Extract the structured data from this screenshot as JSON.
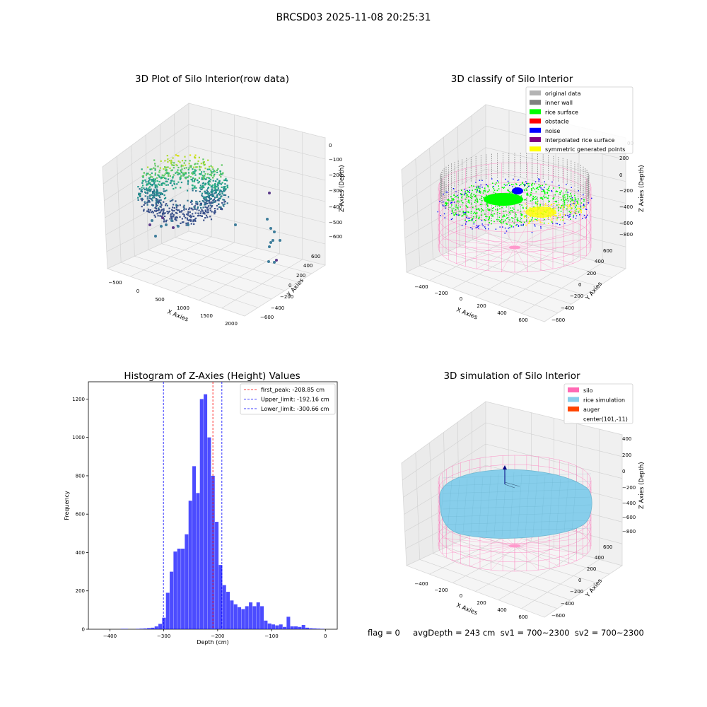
{
  "figure": {
    "suptitle": "BRCSD03 2025-11-08 20:25:31",
    "status_line": "flag = 0     avgDepth = 243 cm  sv1 = 700~2300  sv2 = 700~2300"
  },
  "colors": {
    "original_data": "#b3b3b3",
    "inner_wall": "#808080",
    "rice_surface": "#00ff00",
    "obstacle": "#ff0000",
    "noise": "#0000ff",
    "interpolated_rice_surface": "#800080",
    "symmetric_generated_points": "#ffff00",
    "silo": "#ff69b4",
    "rice_simulation": "#87ceeb",
    "auger": "#ff4500",
    "hist_bar": "#0000ff",
    "first_peak_line": "#ff0000",
    "limit_line": "#0000ff"
  },
  "panels": {
    "raw": {
      "title": "3D Plot of Silo Interior(row data)",
      "xlabel": "X Axies",
      "ylabel": "Y Axies",
      "zlabel": "Z Axies (Depth)",
      "xticks": [
        "−500",
        "0",
        "500",
        "1000",
        "1500",
        "2000"
      ],
      "yticks": [
        "−600",
        "−400",
        "−200",
        "0",
        "200",
        "400",
        "600"
      ],
      "zticks": [
        "0",
        "−100",
        "−200",
        "−300",
        "−400",
        "−500",
        "−600"
      ]
    },
    "classify": {
      "title": "3D classify of Silo Interior",
      "xlabel": "X Axies",
      "ylabel": "Y Axies",
      "zlabel": "Z Axies (Depth)",
      "xticks": [
        "−400",
        "−200",
        "0",
        "200",
        "400",
        "600"
      ],
      "yticks": [
        "−600",
        "−400",
        "−200",
        "0",
        "200",
        "400",
        "600"
      ],
      "zticks": [
        "200",
        "0",
        "−200",
        "−400",
        "−600",
        "−800"
      ],
      "zticks_partial": "00",
      "legend": [
        {
          "label": "original data",
          "color": "#b3b3b3"
        },
        {
          "label": "inner wall",
          "color": "#808080"
        },
        {
          "label": "rice surface",
          "color": "#00ff00"
        },
        {
          "label": "obstacle",
          "color": "#ff0000"
        },
        {
          "label": "noise",
          "color": "#0000ff"
        },
        {
          "label": "interpolated rice surface",
          "color": "#800080"
        },
        {
          "label": "symmetric generated points",
          "color": "#ffff00"
        }
      ]
    },
    "simulation": {
      "title": "3D simulation of Silo Interior",
      "xlabel": "X Axies",
      "ylabel": "Y Axies",
      "zlabel": "Z Axies (Depth)",
      "xticks": [
        "−400",
        "−200",
        "0",
        "200",
        "400",
        "600"
      ],
      "yticks": [
        "−600",
        "−400",
        "−200",
        "0",
        "200",
        "400",
        "600"
      ],
      "zticks": [
        "400",
        "200",
        "0",
        "−200",
        "−400",
        "−600",
        "−800"
      ],
      "legend": [
        {
          "label": "silo",
          "color": "#ff69b4"
        },
        {
          "label": "rice simulation",
          "color": "#87ceeb"
        },
        {
          "label": "auger",
          "color": "#ff4500"
        },
        {
          "label": "center(101,-11)",
          "color": ""
        }
      ]
    }
  },
  "chart_data": [
    {
      "type": "scatter",
      "subtype": "3d",
      "title": "3D Plot of Silo Interior(row data)",
      "xlabel": "X Axies",
      "ylabel": "Y Axies",
      "zlabel": "Z Axies (Depth)",
      "xlim": [
        -600,
        2100
      ],
      "ylim": [
        -650,
        650
      ],
      "zlim": [
        -650,
        20
      ],
      "colormap": "viridis",
      "grid": true
    },
    {
      "type": "scatter",
      "subtype": "3d",
      "title": "3D classify of Silo Interior",
      "xlabel": "X Axies",
      "ylabel": "Y Axies",
      "zlabel": "Z Axies (Depth)",
      "xlim": [
        -500,
        700
      ],
      "ylim": [
        -650,
        650
      ],
      "zlim": [
        -900,
        300
      ],
      "series": [
        {
          "name": "original data"
        },
        {
          "name": "inner wall"
        },
        {
          "name": "rice surface"
        },
        {
          "name": "obstacle"
        },
        {
          "name": "noise"
        },
        {
          "name": "interpolated rice surface"
        },
        {
          "name": "symmetric generated points"
        }
      ],
      "legend_position": "top-right",
      "grid": true
    },
    {
      "type": "bar",
      "subtype": "histogram",
      "title": "Histogram of Z-Axies (Height) Values",
      "xlabel": "Depth (cm)",
      "ylabel": "Frequency",
      "xlim": [
        -440,
        22
      ],
      "ylim": [
        0,
        1290
      ],
      "xticks": [
        -400,
        -300,
        -200,
        -100,
        0
      ],
      "yticks": [
        0,
        200,
        400,
        600,
        800,
        1000,
        1200
      ],
      "bin_width": 7,
      "x": [
        -380,
        -373,
        -352,
        -345,
        -338,
        -331,
        -324,
        -317,
        -310,
        -303,
        -296,
        -289,
        -282,
        -275,
        -268,
        -261,
        -254,
        -247,
        -240,
        -233,
        -226,
        -219,
        -212,
        -205,
        -198,
        -191,
        -184,
        -177,
        -170,
        -163,
        -156,
        -149,
        -142,
        -135,
        -128,
        -121,
        -114,
        -107,
        -100,
        -93,
        -86,
        -79,
        -72,
        -65,
        -58,
        -51,
        -44,
        -37,
        -30,
        -23,
        -16,
        -9
      ],
      "values": [
        2,
        2,
        2,
        3,
        4,
        6,
        8,
        15,
        28,
        60,
        190,
        300,
        405,
        420,
        420,
        495,
        670,
        850,
        710,
        1200,
        1225,
        1000,
        800,
        560,
        335,
        230,
        195,
        150,
        130,
        115,
        105,
        120,
        140,
        120,
        140,
        120,
        45,
        30,
        25,
        20,
        25,
        12,
        65,
        15,
        15,
        12,
        22,
        8,
        5,
        4,
        3,
        2
      ],
      "vlines": [
        {
          "label": "first_peak: -208.85 cm",
          "x": -208.85,
          "color": "#ff0000"
        },
        {
          "label": "Upper_limit: -192.16 cm",
          "x": -192.16,
          "color": "#0000ff"
        },
        {
          "label": "Lower_limit: -300.66 cm",
          "x": -300.66,
          "color": "#0000ff"
        }
      ],
      "legend_position": "top-right"
    },
    {
      "type": "scatter",
      "subtype": "3d-surface",
      "title": "3D simulation of Silo Interior",
      "xlabel": "X Axies",
      "ylabel": "Y Axies",
      "zlabel": "Z Axies (Depth)",
      "xlim": [
        -500,
        700
      ],
      "ylim": [
        -650,
        650
      ],
      "zlim": [
        -900,
        450
      ],
      "series": [
        {
          "name": "silo"
        },
        {
          "name": "rice simulation"
        },
        {
          "name": "auger"
        },
        {
          "name": "center(101,-11)"
        }
      ],
      "legend_position": "top-right",
      "grid": true
    }
  ]
}
